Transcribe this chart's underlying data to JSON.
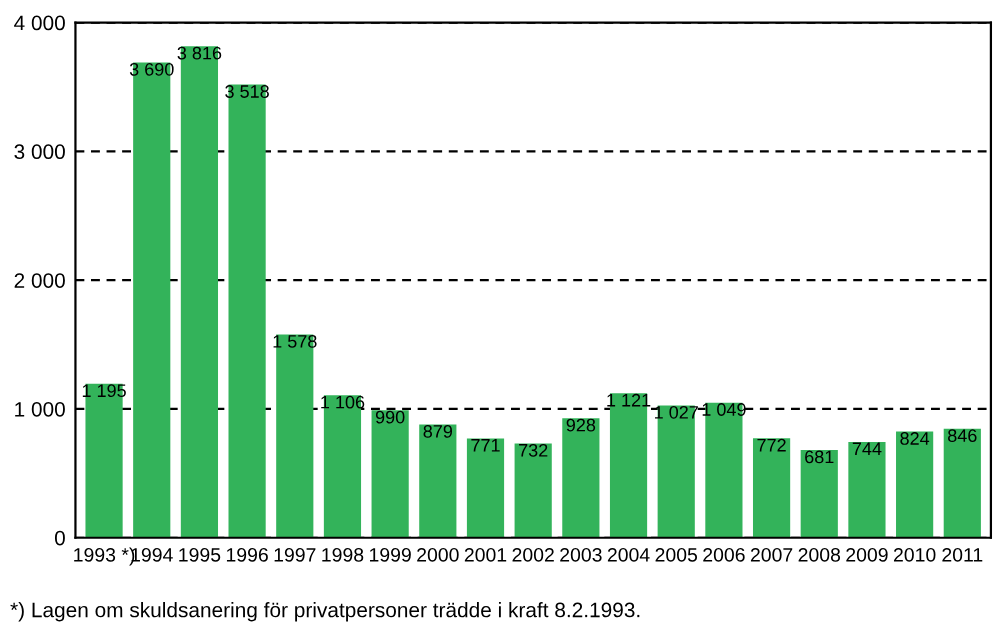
{
  "chart_data": {
    "type": "bar",
    "categories": [
      "1993 *)",
      "1994",
      "1995",
      "1996",
      "1997",
      "1998",
      "1999",
      "2000",
      "2001",
      "2002",
      "2003",
      "2004",
      "2005",
      "2006",
      "2007",
      "2008",
      "2009",
      "2010",
      "2011"
    ],
    "values": [
      1195,
      3690,
      3816,
      3518,
      1578,
      1106,
      990,
      879,
      771,
      732,
      928,
      1121,
      1027,
      1049,
      772,
      681,
      744,
      824,
      846
    ],
    "value_labels": [
      "1 195",
      "3 690",
      "3 816",
      "3 518",
      "1 578",
      "1 106",
      "990",
      "879",
      "771",
      "732",
      "928",
      "1 121",
      "1 027",
      "1 049",
      "772",
      "681",
      "744",
      "824",
      "846"
    ],
    "color": "#33b35a",
    "ylim": [
      0,
      4000
    ],
    "yticks": [
      {
        "value": 0,
        "label": "0"
      },
      {
        "value": 1000,
        "label": "1 000"
      },
      {
        "value": 2000,
        "label": "2 000"
      },
      {
        "value": 3000,
        "label": "3 000"
      },
      {
        "value": 4000,
        "label": "4 000"
      }
    ],
    "grid": "y",
    "annotations": [
      "*) Lagen om skuldsanering för privatpersoner trädde i kraft 8.2.1993."
    ]
  }
}
